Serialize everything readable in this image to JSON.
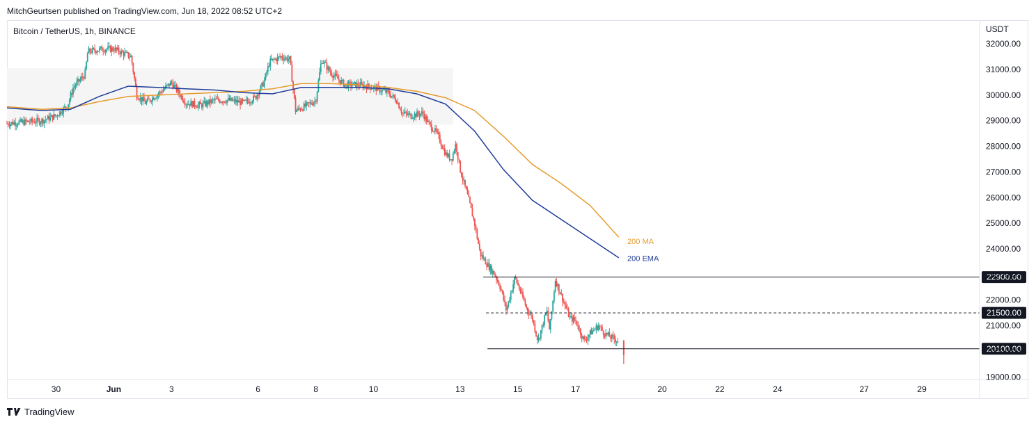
{
  "header": {
    "published_line": "MitchGeurtsen published on TradingView.com, Jun 18, 2022 08:52 UTC+2"
  },
  "chart_title": "Bitcoin / TetherUS, 1h, BINANCE",
  "footer": {
    "brand": "TradingView"
  },
  "colors": {
    "up": "#26a69a",
    "down": "#ef5350",
    "ma": "#e69b2d",
    "ema": "#1f3c99",
    "range_box": "#f5f5f5"
  },
  "chart_data": {
    "type": "candlestick",
    "title": "Bitcoin / TetherUS, 1h, BINANCE",
    "currency": "USDT",
    "ylim": [
      18900,
      32900
    ],
    "y_ticks": [
      19000,
      20000,
      21000,
      22000,
      23000,
      24000,
      25000,
      26000,
      27000,
      28000,
      29000,
      30000,
      31000,
      32000
    ],
    "y_tick_labels": [
      "19000.00",
      "20000.00",
      "21000.00",
      "22000.00",
      "23000.00",
      "24000.00",
      "25000.00",
      "26000.00",
      "27000.00",
      "28000.00",
      "29000.00",
      "30000.00",
      "31000.00",
      "32000.00"
    ],
    "x_ticks": [
      {
        "label": "30",
        "day": 30,
        "bold": false
      },
      {
        "label": "Jun",
        "day": 32,
        "bold": true
      },
      {
        "label": "3",
        "day": 34,
        "bold": false
      },
      {
        "label": "6",
        "day": 37,
        "bold": false
      },
      {
        "label": "8",
        "day": 39,
        "bold": false
      },
      {
        "label": "10",
        "day": 41,
        "bold": false
      },
      {
        "label": "13",
        "day": 44,
        "bold": false
      },
      {
        "label": "15",
        "day": 46,
        "bold": false
      },
      {
        "label": "17",
        "day": 48,
        "bold": false
      },
      {
        "label": "20",
        "day": 51,
        "bold": false
      },
      {
        "label": "22",
        "day": 53,
        "bold": false
      },
      {
        "label": "24",
        "day": 55,
        "bold": false
      },
      {
        "label": "27",
        "day": 58,
        "bold": false
      },
      {
        "label": "29",
        "day": 60,
        "bold": false
      }
    ],
    "x_range_days": [
      28.3,
      62.0
    ],
    "range_box": {
      "start_day": 28.3,
      "end_day": 43.76,
      "low": 28850,
      "high": 31050
    },
    "levels": [
      {
        "label": "22900.00",
        "value": 22900,
        "style": "solid",
        "start_day": 44.8,
        "end_day": 62.0
      },
      {
        "label": "21500.00",
        "value": 21500,
        "style": "dashed",
        "start_day": 44.9,
        "end_day": 62.0
      },
      {
        "label": "20100.00",
        "value": 20100,
        "style": "solid",
        "start_day": 44.95,
        "end_day": 62.0
      }
    ],
    "ma_labels": [
      {
        "text": "200 MA",
        "value": 24300,
        "day": 49.65
      },
      {
        "text": "200 EMA",
        "value": 23630,
        "day": 49.65
      }
    ],
    "series": [
      {
        "name": "200 MA",
        "points": [
          [
            28.3,
            29550
          ],
          [
            29.5,
            29450
          ],
          [
            30.5,
            29500
          ],
          [
            31.5,
            29750
          ],
          [
            32.5,
            29950
          ],
          [
            33.5,
            30000
          ],
          [
            34.5,
            30050
          ],
          [
            35.5,
            30100
          ],
          [
            36.5,
            30150
          ],
          [
            37.5,
            30250
          ],
          [
            38.5,
            30450
          ],
          [
            39.5,
            30450
          ],
          [
            40.5,
            30400
          ],
          [
            41.5,
            30300
          ],
          [
            42.5,
            30150
          ],
          [
            43.5,
            29900
          ],
          [
            44.5,
            29400
          ],
          [
            45.5,
            28400
          ],
          [
            46.5,
            27300
          ],
          [
            47.5,
            26550
          ],
          [
            48.5,
            25700
          ],
          [
            49.5,
            24450
          ]
        ]
      },
      {
        "name": "200 EMA",
        "points": [
          [
            28.3,
            29500
          ],
          [
            29.5,
            29400
          ],
          [
            30.5,
            29450
          ],
          [
            31.5,
            29950
          ],
          [
            32.5,
            30350
          ],
          [
            33.5,
            30300
          ],
          [
            34.5,
            30250
          ],
          [
            35.5,
            30200
          ],
          [
            36.5,
            30100
          ],
          [
            37.5,
            30050
          ],
          [
            38.5,
            30300
          ],
          [
            39.5,
            30300
          ],
          [
            40.5,
            30300
          ],
          [
            41.5,
            30250
          ],
          [
            42.5,
            30050
          ],
          [
            43.5,
            29650
          ],
          [
            44.5,
            28600
          ],
          [
            45.5,
            27100
          ],
          [
            46.5,
            25900
          ],
          [
            47.5,
            25150
          ],
          [
            48.5,
            24400
          ],
          [
            49.5,
            23650
          ]
        ]
      }
    ],
    "candle_keypoints": [
      [
        28.3,
        28900
      ],
      [
        29.5,
        29000
      ],
      [
        30.0,
        29200
      ],
      [
        30.4,
        29600
      ],
      [
        30.6,
        30300
      ],
      [
        31.0,
        30800
      ],
      [
        31.1,
        31700
      ],
      [
        31.6,
        31800
      ],
      [
        32.0,
        31800
      ],
      [
        32.4,
        31600
      ],
      [
        32.6,
        31500
      ],
      [
        32.8,
        30000
      ],
      [
        33.1,
        29700
      ],
      [
        33.6,
        30100
      ],
      [
        34.0,
        30500
      ],
      [
        34.5,
        29700
      ],
      [
        35.0,
        29600
      ],
      [
        35.5,
        29800
      ],
      [
        36.0,
        29800
      ],
      [
        36.5,
        29700
      ],
      [
        36.9,
        29900
      ],
      [
        37.2,
        30500
      ],
      [
        37.4,
        31300
      ],
      [
        37.8,
        31500
      ],
      [
        38.1,
        31400
      ],
      [
        38.3,
        29400
      ],
      [
        38.7,
        29600
      ],
      [
        39.0,
        29800
      ],
      [
        39.2,
        31400
      ],
      [
        39.5,
        30900
      ],
      [
        40.0,
        30400
      ],
      [
        40.5,
        30400
      ],
      [
        41.0,
        30300
      ],
      [
        41.5,
        30100
      ],
      [
        41.8,
        29800
      ],
      [
        42.0,
        29300
      ],
      [
        42.3,
        29200
      ],
      [
        42.7,
        29300
      ],
      [
        42.9,
        28900
      ],
      [
        43.2,
        28500
      ],
      [
        43.5,
        27700
      ],
      [
        43.7,
        27500
      ],
      [
        43.85,
        28100
      ],
      [
        44.0,
        27100
      ],
      [
        44.3,
        25900
      ],
      [
        44.5,
        25000
      ],
      [
        44.7,
        23800
      ],
      [
        45.0,
        23300
      ],
      [
        45.2,
        23000
      ],
      [
        45.4,
        22500
      ],
      [
        45.6,
        21600
      ],
      [
        45.9,
        22900
      ],
      [
        46.1,
        22300
      ],
      [
        46.3,
        21700
      ],
      [
        46.5,
        21300
      ],
      [
        46.7,
        20400
      ],
      [
        47.0,
        21600
      ],
      [
        47.1,
        20800
      ],
      [
        47.3,
        22800
      ],
      [
        47.6,
        21900
      ],
      [
        47.8,
        21300
      ],
      [
        48.0,
        21200
      ],
      [
        48.3,
        20400
      ],
      [
        48.5,
        20700
      ],
      [
        48.8,
        21000
      ],
      [
        49.0,
        20700
      ],
      [
        49.3,
        20500
      ],
      [
        49.5,
        20400
      ]
    ],
    "last_candle": {
      "day": 49.67,
      "open": 20400,
      "close": 19850,
      "high": 20450,
      "low": 19500
    }
  }
}
